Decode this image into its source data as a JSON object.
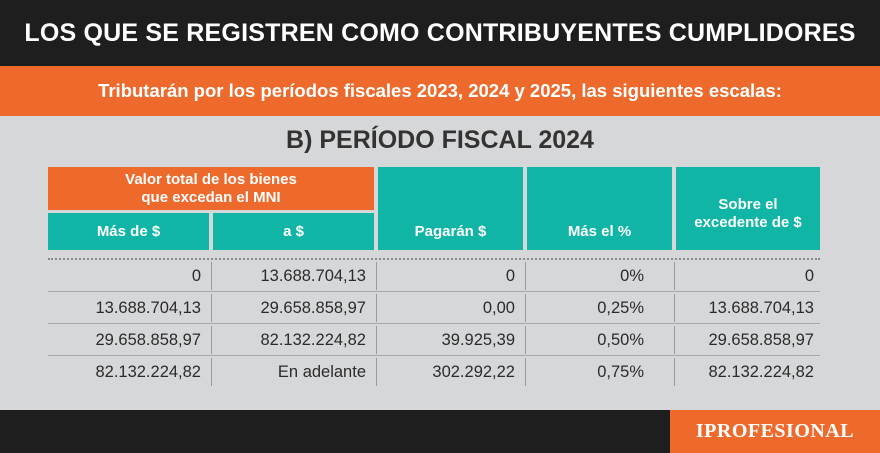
{
  "header": {
    "title": "LOS QUE SE REGISTREN COMO CONTRIBUYENTES CUMPLIDORES",
    "subtitle": "Tributarán por los períodos fiscales 2023, 2024 y 2025, las siguientes escalas:"
  },
  "section": {
    "title": "B) PERÍODO FISCAL 2024"
  },
  "table": {
    "group_header": [
      "Valor total de los bienes",
      "que excedan el MNI"
    ],
    "columns": {
      "mas_de": "Más de $",
      "a": "a $",
      "pagaran": "Pagarán $",
      "mas_pct": "Más el %",
      "sobre": [
        "Sobre el",
        "excedente de $"
      ]
    },
    "rows": [
      [
        "0",
        "13.688.704,13",
        "0",
        "0%",
        "0"
      ],
      [
        "13.688.704,13",
        "29.658.858,97",
        "0,00",
        "0,25%",
        "13.688.704,13"
      ],
      [
        "29.658.858,97",
        "82.132.224,82",
        "39.925,39",
        "0,50%",
        "29.658.858,97"
      ],
      [
        "82.132.224,82",
        "En adelante",
        "302.292,22",
        "0,75%",
        "82.132.224,82"
      ]
    ]
  },
  "footer": {
    "brand": "IPROFESIONAL"
  },
  "colors": {
    "orange": "#ee6a2c",
    "teal": "#11b5a5",
    "dark": "#1e1e1e",
    "background": "#d6d7d9"
  }
}
